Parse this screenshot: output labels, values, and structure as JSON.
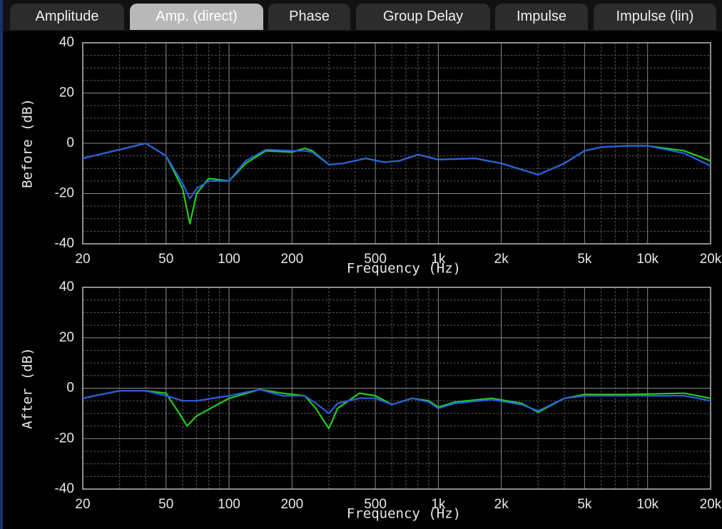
{
  "tabs": [
    "Amplitude",
    "Amp. (direct)",
    "Phase",
    "Group Delay",
    "Impulse",
    "Impulse (lin)"
  ],
  "selected_tab": 1,
  "chart_data": [
    {
      "type": "line",
      "ylabel": "Before (dB)",
      "xlabel": "Frequency (Hz)",
      "xscale": "log",
      "xlim": [
        20,
        20000
      ],
      "ylim": [
        -40,
        40
      ],
      "xticks": [
        20,
        50,
        100,
        200,
        500,
        {
          "value": 1000,
          "label": "1k"
        },
        {
          "value": 2000,
          "label": "2k"
        },
        {
          "value": 5000,
          "label": "5k"
        },
        {
          "value": 10000,
          "label": "10k"
        },
        {
          "value": 20000,
          "label": "20k"
        }
      ],
      "yticks": [
        -40,
        -20,
        0,
        20,
        40
      ],
      "x_minor_grid": [
        30,
        40,
        60,
        70,
        80,
        90,
        300,
        400,
        600,
        700,
        800,
        900,
        3000,
        4000,
        6000,
        7000,
        8000,
        9000
      ],
      "y_minor_grid": [
        -35,
        -30,
        -25,
        -15,
        -10,
        -5,
        5,
        10,
        15,
        25,
        30,
        35
      ],
      "grid": true,
      "x": [
        20,
        30,
        40,
        50,
        60,
        65,
        70,
        80,
        100,
        120,
        150,
        200,
        230,
        250,
        300,
        350,
        450,
        550,
        650,
        800,
        1000,
        1500,
        2000,
        3000,
        4000,
        5000,
        6000,
        8000,
        10000,
        15000,
        20000
      ],
      "series": [
        {
          "color": "#22cc22",
          "values": [
            -6,
            -2.5,
            0,
            -5,
            -18,
            -32,
            -20,
            -14,
            -15,
            -8,
            -3,
            -3.5,
            -2,
            -3,
            -8.5,
            -8,
            -6,
            -7.5,
            -7,
            -4.5,
            -6.5,
            -6,
            -8,
            -12.5,
            -8,
            -3,
            -1.5,
            -1,
            -1,
            -3,
            -7
          ]
        },
        {
          "color": "#2a5fe0",
          "values": [
            -6,
            -2.5,
            0,
            -5,
            -16,
            -22,
            -18,
            -15,
            -15,
            -7,
            -2.5,
            -3,
            -3,
            -3.5,
            -8.5,
            -8,
            -6,
            -7.5,
            -7,
            -4.5,
            -6.5,
            -6,
            -8,
            -12.5,
            -8,
            -3,
            -1.5,
            -1,
            -1,
            -4,
            -9
          ]
        }
      ]
    },
    {
      "type": "line",
      "ylabel": "After (dB)",
      "xlabel": "Frequency (Hz)",
      "xscale": "log",
      "xlim": [
        20,
        20000
      ],
      "ylim": [
        -40,
        40
      ],
      "xticks": [
        20,
        50,
        100,
        200,
        500,
        {
          "value": 1000,
          "label": "1k"
        },
        {
          "value": 2000,
          "label": "2k"
        },
        {
          "value": 5000,
          "label": "5k"
        },
        {
          "value": 10000,
          "label": "10k"
        },
        {
          "value": 20000,
          "label": "20k"
        }
      ],
      "yticks": [
        -40,
        -20,
        0,
        20,
        40
      ],
      "x_minor_grid": [
        30,
        40,
        60,
        70,
        80,
        90,
        300,
        400,
        600,
        700,
        800,
        900,
        3000,
        4000,
        6000,
        7000,
        8000,
        9000
      ],
      "y_minor_grid": [
        -35,
        -30,
        -25,
        -15,
        -10,
        -5,
        5,
        10,
        15,
        25,
        30,
        35
      ],
      "grid": true,
      "x": [
        20,
        30,
        40,
        50,
        60,
        63,
        70,
        100,
        140,
        180,
        230,
        260,
        300,
        330,
        420,
        500,
        600,
        750,
        900,
        1000,
        1200,
        1800,
        2500,
        3000,
        4000,
        5000,
        8000,
        15000,
        20000
      ],
      "series": [
        {
          "color": "#22cc22",
          "values": [
            -4,
            -1,
            -1,
            -2,
            -12,
            -15,
            -11,
            -4,
            -0.5,
            -2,
            -3,
            -8,
            -16,
            -8,
            -2,
            -3,
            -6.5,
            -4,
            -5,
            -7.5,
            -5.5,
            -4,
            -6,
            -9.5,
            -4,
            -2.5,
            -2.5,
            -2,
            -4
          ]
        },
        {
          "color": "#2a5fe0",
          "values": [
            -4,
            -1,
            -1,
            -3,
            -5,
            -5,
            -5,
            -3,
            -0.5,
            -3,
            -3,
            -6,
            -10,
            -6,
            -4,
            -4,
            -6.5,
            -4,
            -5.5,
            -8,
            -6,
            -4.5,
            -6.5,
            -9,
            -4,
            -3,
            -3,
            -3,
            -5
          ]
        }
      ]
    }
  ]
}
